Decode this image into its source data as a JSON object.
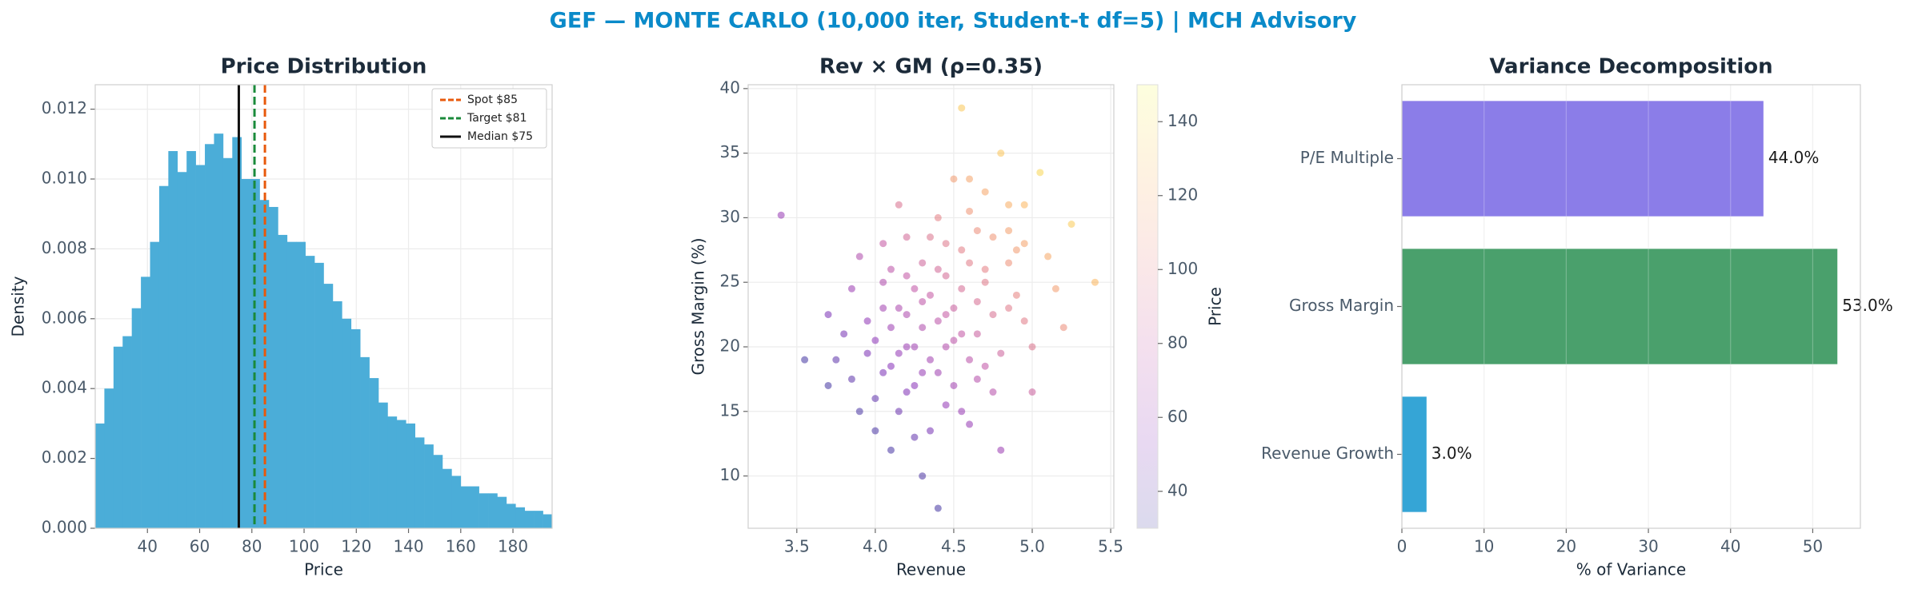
{
  "title": "GEF — MONTE CARLO (10,000 iter, Student-t df=5) | MCH Advisory",
  "chart_data": [
    {
      "type": "histogram",
      "title": "Price Distribution",
      "xlabel": "Price",
      "ylabel": "Density",
      "color": "#4badd8",
      "bins": [
        20,
        23.5,
        27,
        30.5,
        34,
        37.5,
        41,
        44.5,
        48,
        51.5,
        55,
        58.5,
        62,
        65.5,
        69,
        72.5,
        76,
        79.5,
        83,
        86.5,
        90,
        93.5,
        97,
        100.5,
        104,
        107.5,
        111,
        114.5,
        118,
        121.5,
        125,
        128.5,
        132,
        135.5,
        139,
        142.5,
        146,
        149.5,
        153,
        156.5,
        160,
        163.5,
        167,
        170.5,
        174,
        177.5,
        181,
        184.5,
        188,
        191.5,
        195
      ],
      "values": [
        0.003,
        0.004,
        0.0052,
        0.0055,
        0.0063,
        0.0072,
        0.0082,
        0.0098,
        0.0108,
        0.0102,
        0.0108,
        0.0104,
        0.011,
        0.0113,
        0.0106,
        0.0112,
        0.01,
        0.01,
        0.0094,
        0.0092,
        0.0084,
        0.0082,
        0.0082,
        0.0078,
        0.0076,
        0.007,
        0.0065,
        0.006,
        0.0057,
        0.0049,
        0.0043,
        0.0036,
        0.0032,
        0.0031,
        0.003,
        0.0026,
        0.0024,
        0.0021,
        0.0017,
        0.0015,
        0.0012,
        0.0012,
        0.001,
        0.001,
        0.0009,
        0.0007,
        0.0006,
        0.0005,
        0.0005,
        0.0004
      ],
      "xlim": [
        20,
        195
      ],
      "ylim": [
        0,
        0.0127
      ],
      "xticks": [
        40,
        60,
        80,
        100,
        120,
        140,
        160,
        180
      ],
      "yticks": [
        {
          "value": 0,
          "label": "0.000"
        },
        0.002,
        0.004,
        0.006,
        0.008,
        {
          "value": 0.01,
          "label": "0.010"
        },
        0.012
      ],
      "grid": true,
      "legend": "upper right",
      "vlines": [
        {
          "name": "Spot $85",
          "value": 85,
          "color": "#e8590c",
          "dash": true
        },
        {
          "name": "Target $81",
          "value": 81,
          "color": "#1a8a3a",
          "dash": true
        },
        {
          "name": "Median $75",
          "value": 75,
          "color": "#111111",
          "dash": false
        }
      ]
    },
    {
      "type": "scatter",
      "title": "Rev × GM (ρ=0.35)",
      "xlabel": "Revenue",
      "ylabel": "Gross Margin (%)",
      "x": [
        4.4,
        4.1,
        4.7,
        4.25,
        4.55,
        3.9,
        4.85,
        4.3,
        4.6,
        4.05,
        4.45,
        4.2,
        4.75,
        3.75,
        4.95,
        4.35,
        4.5,
        4.15,
        4.65,
        4.0,
        5.1,
        4.3,
        3.7,
        4.8,
        4.4,
        4.55,
        4.2,
        4.9,
        4.1,
        4.6,
        4.35,
        3.95,
        5.0,
        4.25,
        4.7,
        4.45,
        4.05,
        4.85,
        3.85,
        4.5,
        5.25,
        4.15,
        4.65,
        4.3,
        4.75,
        3.55,
        4.4,
        4.0,
        4.95,
        4.55,
        4.2,
        4.6,
        4.35,
        3.8,
        5.05,
        4.45,
        4.1,
        4.8,
        4.25,
        4.7,
        3.4,
        4.5,
        4.15,
        4.9,
        4.3,
        4.05,
        4.65,
        4.4,
        4.55,
        5.4,
        3.9,
        4.75,
        4.2,
        4.85,
        4.45,
        4.0,
        4.6,
        4.35,
        5.15,
        4.1,
        4.7,
        4.25,
        3.7,
        4.95,
        4.5,
        4.8,
        4.15,
        4.4,
        5.0,
        4.6,
        4.3,
        3.95,
        4.55,
        4.85,
        4.05,
        4.65,
        4.2,
        4.45,
        3.85,
        5.2
      ],
      "values": [
        22.0,
        18.5,
        26.0,
        20.0,
        24.5,
        15.0,
        29.0,
        21.5,
        19.0,
        25.0,
        28.0,
        16.5,
        22.5,
        19.0,
        31.0,
        13.5,
        33.0,
        23.0,
        17.5,
        20.5,
        27.0,
        26.5,
        17.0,
        35.0,
        18.0,
        21.0,
        28.5,
        24.0,
        12.0,
        30.5,
        24.0,
        22.0,
        20.0,
        17.0,
        32.0,
        15.5,
        28.0,
        26.5,
        24.5,
        20.5,
        29.5,
        19.5,
        23.5,
        10.0,
        28.5,
        19.0,
        30.0,
        16.0,
        22.0,
        27.5,
        22.5,
        14.0,
        19.0,
        21.0,
        33.5,
        25.5,
        26.0,
        19.5,
        13.0,
        25.0,
        30.2,
        17.0,
        31.0,
        27.5,
        23.5,
        18.0,
        21.0,
        7.5,
        38.5,
        25.0,
        27.0,
        16.5,
        25.5,
        23.0,
        20.0,
        13.5,
        26.5,
        28.5,
        24.5,
        21.5,
        18.5,
        24.5,
        22.5,
        28.0,
        23.0,
        12.0,
        15.0,
        26.0,
        16.5,
        33.0,
        18.0,
        19.5,
        15.0,
        31.0,
        23.0,
        29.0,
        20.0,
        22.5,
        17.5,
        21.5
      ],
      "color_values": [
        76,
        54,
        100,
        64,
        90,
        35,
        115,
        71,
        75,
        71,
        96,
        52,
        92,
        41,
        125,
        49,
        113,
        69,
        73,
        56,
        119,
        86,
        33,
        131,
        64,
        79,
        88,
        102,
        34,
        110,
        80,
        58,
        94,
        55,
        118,
        59,
        80,
        108,
        62,
        76,
        133,
        59,
        91,
        36,
        110,
        33,
        100,
        42,
        98,
        99,
        70,
        60,
        65,
        49,
        137,
        89,
        76,
        85,
        43,
        97,
        61,
        65,
        93,
        113,
        77,
        50,
        83,
        33,
        132,
        125,
        71,
        74,
        79,
        97,
        72,
        35,
        98,
        94,
        114,
        63,
        78,
        78,
        50,
        116,
        83,
        62,
        45,
        88,
        84,
        117,
        60,
        51,
        61,
        121,
        65,
        107,
        62,
        80,
        41,
        107
      ],
      "cmap": "plasma",
      "clim": [
        30,
        150
      ],
      "cticks": [
        40,
        60,
        80,
        100,
        120,
        140
      ],
      "clabel": "Price",
      "xlim": [
        3.19,
        5.52
      ],
      "ylim": [
        5.95,
        40.3
      ],
      "xticks": [
        3.5,
        {
          "value": 4,
          "label": "4.0"
        },
        4.5,
        {
          "value": 5,
          "label": "5.0"
        },
        5.5
      ],
      "yticks": [
        10,
        15,
        20,
        25,
        30,
        35,
        40
      ],
      "grid": true
    },
    {
      "type": "barh",
      "title": "Variance Decomposition",
      "xlabel": "% of Variance",
      "categories": [
        "P/E Multiple",
        "Gross Margin",
        "Revenue Growth"
      ],
      "values": [
        44,
        53,
        3
      ],
      "value_labels": [
        "44.0%",
        "53.0%",
        "3.0%"
      ],
      "colors": [
        "#8b7de8",
        "#4aa06c",
        "#35a5d6"
      ],
      "xlim": [
        0,
        55.8
      ],
      "xticks": [
        0,
        10,
        20,
        30,
        40,
        50
      ],
      "grid": true
    }
  ]
}
